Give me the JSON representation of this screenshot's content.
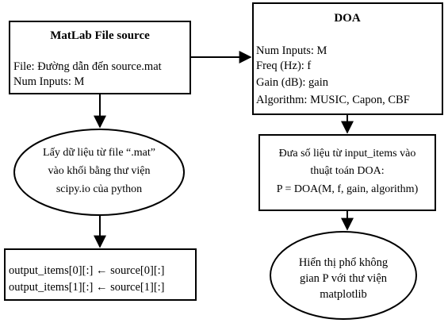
{
  "nodes": {
    "matlab": {
      "title": "MatLab File source",
      "lines": [
        "File: Đường dẫn đến source.mat",
        "Num Inputs: M"
      ]
    },
    "load": {
      "lines": [
        "Lấy dữ liệu từ file “.mat”",
        "vào khối bằng thư viện",
        "scipy.io của python"
      ]
    },
    "output": {
      "lines": [
        "output_items[0][:] ← source[0][:]",
        "output_items[1][:] ← source[1][:]"
      ]
    },
    "doa": {
      "title": "DOA",
      "lines": [
        "Num Inputs: M",
        "Freq (Hz): f",
        "Gain (dB): gain",
        "Algorithm: MUSIC, Capon, CBF"
      ]
    },
    "compute": {
      "lines": [
        "Đưa số liệu từ input_items vào",
        "thuật toán DOA:",
        "P = DOA(M, f, gain, algorithm)"
      ]
    },
    "display": {
      "lines": [
        "Hiển thị phổ không",
        "gian P với thư viện",
        "matplotlib"
      ]
    }
  }
}
